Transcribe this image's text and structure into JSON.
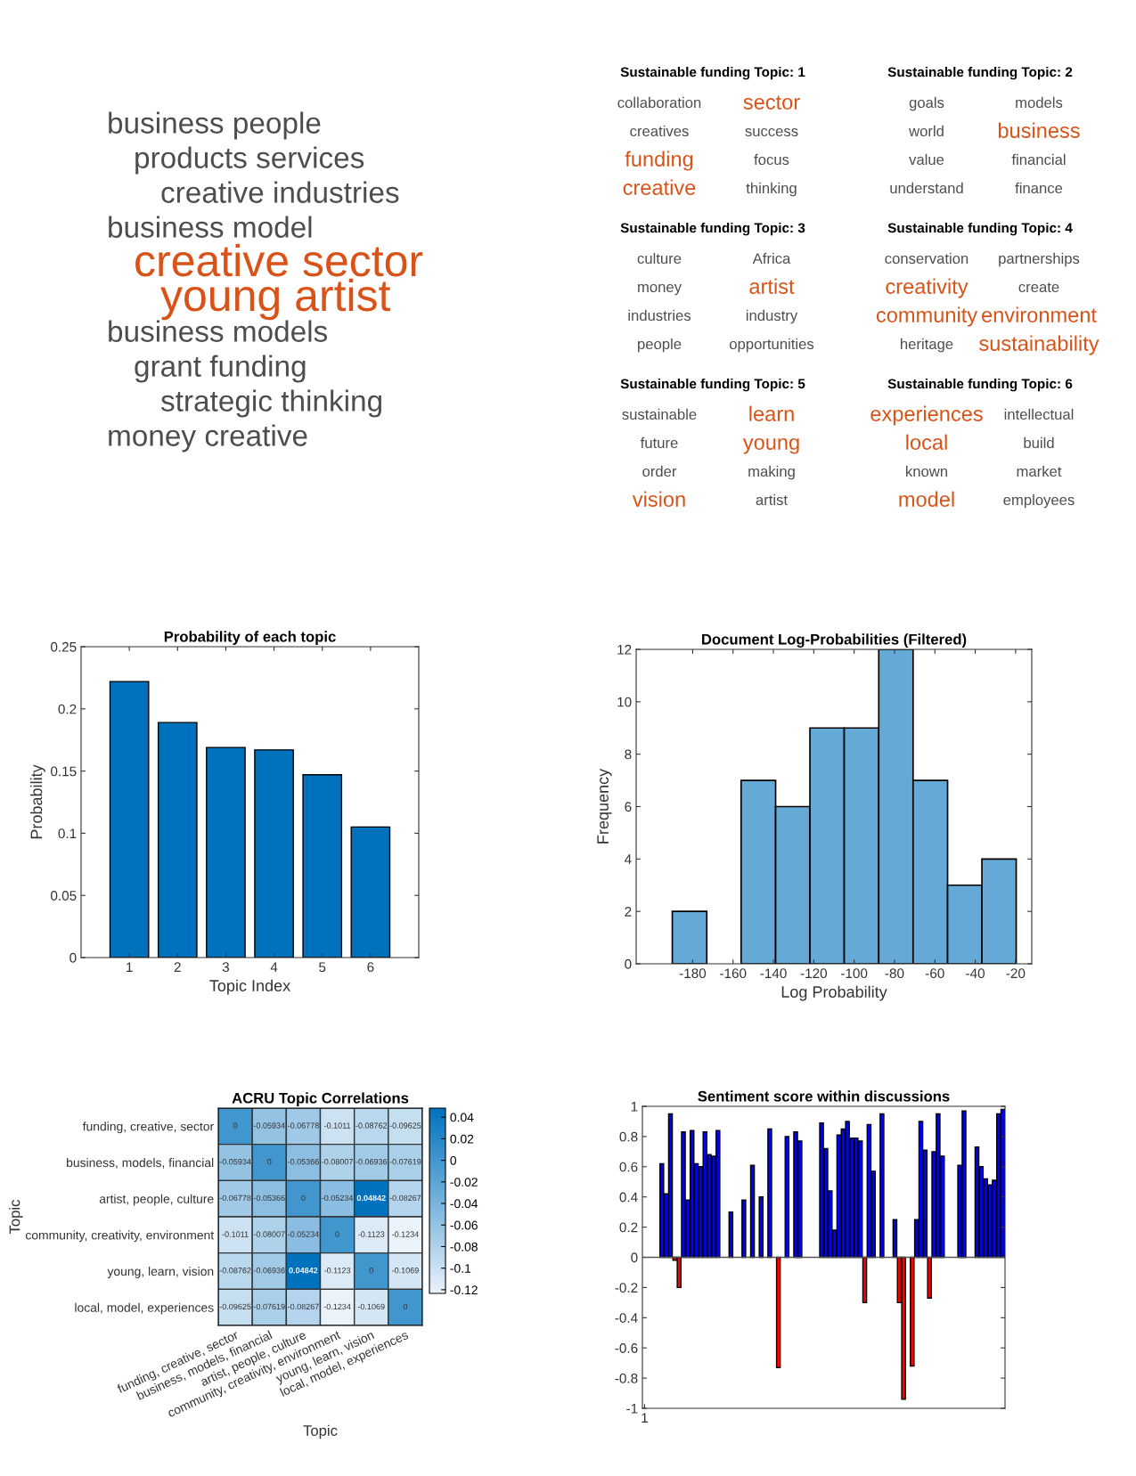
{
  "chart_data": [
    {
      "type": "other",
      "categories": [
        "business people",
        "products services",
        "creative industries",
        "business model",
        "creative sector",
        "young artist",
        "business models",
        "grant funding",
        "strategic thinking",
        "money creative"
      ],
      "colors": [
        "#4d4d4d",
        "#4d4d4d",
        "#4d4d4d",
        "#4d4d4d",
        "#d95319",
        "#d95319",
        "#4d4d4d",
        "#4d4d4d",
        "#4d4d4d",
        "#4d4d4d"
      ]
    },
    {
      "type": "other",
      "title": "Sustainable funding Topic: 1",
      "categories": [
        "collaboration",
        "sector",
        "creatives",
        "success",
        "funding",
        "focus",
        "creative",
        "thinking"
      ],
      "colors": [
        "#4d4d4d",
        "#d95319",
        "#4d4d4d",
        "#4d4d4d",
        "#d95319",
        "#4d4d4d",
        "#d95319",
        "#4d4d4d"
      ]
    },
    {
      "type": "other",
      "title": "Sustainable funding Topic: 2",
      "categories": [
        "goals",
        "models",
        "world",
        "business",
        "value",
        "financial",
        "understand",
        "finance"
      ],
      "colors": [
        "#4d4d4d",
        "#4d4d4d",
        "#4d4d4d",
        "#d95319",
        "#4d4d4d",
        "#4d4d4d",
        "#4d4d4d",
        "#4d4d4d"
      ]
    },
    {
      "type": "other",
      "title": "Sustainable funding Topic: 3",
      "categories": [
        "culture",
        "Africa",
        "money",
        "artist",
        "industries",
        "industry",
        "people",
        "opportunities"
      ],
      "colors": [
        "#4d4d4d",
        "#4d4d4d",
        "#4d4d4d",
        "#d95319",
        "#4d4d4d",
        "#4d4d4d",
        "#4d4d4d",
        "#4d4d4d"
      ]
    },
    {
      "type": "other",
      "title": "Sustainable funding Topic: 4",
      "categories": [
        "conservation",
        "partnerships",
        "creativity",
        "create",
        "community",
        "environment",
        "heritage",
        "sustainability"
      ],
      "colors": [
        "#4d4d4d",
        "#4d4d4d",
        "#d95319",
        "#4d4d4d",
        "#d95319",
        "#d95319",
        "#4d4d4d",
        "#d95319"
      ]
    },
    {
      "type": "other",
      "title": "Sustainable funding Topic: 5",
      "categories": [
        "sustainable",
        "learn",
        "future",
        "young",
        "order",
        "making",
        "vision",
        "artist"
      ],
      "colors": [
        "#4d4d4d",
        "#d95319",
        "#4d4d4d",
        "#d95319",
        "#4d4d4d",
        "#4d4d4d",
        "#d95319",
        "#4d4d4d"
      ]
    },
    {
      "type": "other",
      "title": "Sustainable funding Topic: 6",
      "categories": [
        "experiences",
        "intellectual",
        "local",
        "build",
        "known",
        "market",
        "model",
        "employees"
      ],
      "colors": [
        "#d95319",
        "#4d4d4d",
        "#d95319",
        "#4d4d4d",
        "#4d4d4d",
        "#4d4d4d",
        "#d95319",
        "#4d4d4d"
      ]
    },
    {
      "type": "bar",
      "title": "Probability of each topic",
      "xlabel": "Topic Index",
      "ylabel": "Probability",
      "x": [
        1,
        2,
        3,
        4,
        5,
        6
      ],
      "values": [
        0.222,
        0.189,
        0.169,
        0.167,
        0.147,
        0.105
      ],
      "color": "#0072bd",
      "xlim": [
        0,
        7
      ],
      "xticks": [
        1,
        2,
        3,
        4,
        5,
        6
      ],
      "ylim": [
        0,
        0.25
      ],
      "yticks": [
        0,
        0.05,
        0.1,
        0.15,
        0.2,
        0.25
      ],
      "grid": false
    },
    {
      "type": "histogram",
      "title": "Document Log-Probabilities (Filtered)",
      "xlabel": "Log Probability",
      "ylabel": "Frequency",
      "bins": [
        -190.1,
        -173.0,
        -156.0,
        -138.9,
        -121.9,
        -104.9,
        -87.8,
        -70.8,
        -53.7,
        -36.7,
        -19.7
      ],
      "values": [
        2,
        0,
        7,
        6,
        9,
        9,
        12,
        7,
        3,
        4
      ],
      "color": "#65a9d7",
      "xlim": [
        -208,
        -12
      ],
      "xticks": [
        -180,
        -160,
        -140,
        -120,
        -100,
        -80,
        -60,
        -40,
        -20
      ],
      "ylim": [
        0,
        12
      ],
      "yticks": [
        0,
        2,
        4,
        6,
        8,
        10,
        12
      ],
      "grid": false
    },
    {
      "type": "heatmap",
      "title": "ACRU Topic Correlations",
      "xlabel": "Topic",
      "ylabel": "Topic",
      "categories": [
        "funding, creative, sector",
        "business, models, financial",
        "artist, people, culture",
        "community, creativity, environment",
        "young, learn, vision",
        "local, model, experiences"
      ],
      "y_categories": [
        "funding, creative, sector",
        "business, models, financial",
        "artist, people, culture",
        "community, creativity, environment",
        "young, learn, vision",
        "local, model, experiences"
      ],
      "cells": [
        [
          0,
          -0.05934,
          -0.06778,
          -0.1011,
          -0.08762,
          -0.09625
        ],
        [
          -0.05934,
          0,
          -0.05366,
          -0.08007,
          -0.06936,
          -0.07619
        ],
        [
          -0.06778,
          -0.05366,
          0,
          -0.05234,
          0.04842,
          -0.08267
        ],
        [
          -0.1011,
          -0.08007,
          -0.05234,
          0,
          -0.1123,
          -0.1234
        ],
        [
          -0.08762,
          -0.06936,
          0.04842,
          -0.1123,
          0,
          -0.1069
        ],
        [
          -0.09625,
          -0.07619,
          -0.08267,
          -0.1234,
          -0.1069,
          0
        ]
      ],
      "data_labels": true,
      "colors": [
        "#eaf2fa",
        "#0072bd"
      ],
      "clim": [
        -0.1234,
        0.04842
      ],
      "cticks": [
        0.04,
        0.02,
        0,
        -0.02,
        -0.04,
        -0.06,
        -0.08,
        -0.1,
        -0.12
      ]
    },
    {
      "type": "bar",
      "title": "Sentiment score within discussions",
      "categories": [
        "1",
        null,
        null,
        null,
        null,
        null,
        null,
        null,
        null,
        null,
        null,
        null,
        null,
        null,
        null,
        null,
        null,
        null,
        null,
        null,
        null,
        null,
        null,
        null,
        null,
        null,
        null,
        null,
        null,
        null,
        null,
        null,
        null,
        null,
        null,
        null,
        null,
        null,
        null,
        null,
        null,
        null,
        null,
        null,
        null,
        null,
        null,
        null,
        null,
        null,
        null,
        null,
        null,
        null,
        null,
        null,
        null,
        null,
        null,
        null,
        null,
        null,
        null,
        null,
        null,
        null,
        null,
        null,
        null,
        null,
        null,
        null,
        null,
        null,
        null,
        null,
        null,
        null,
        null,
        null,
        null,
        null,
        null,
        null
      ],
      "values": [
        null,
        null,
        null,
        null,
        0.62,
        0.42,
        0.95,
        -0.02,
        -0.2,
        0.83,
        0.38,
        0.84,
        0.62,
        0.6,
        0.83,
        0.68,
        0.67,
        0.84,
        null,
        null,
        0.3,
        null,
        null,
        0.38,
        null,
        0.61,
        null,
        0.4,
        null,
        0.85,
        null,
        -0.73,
        null,
        0.8,
        null,
        0.83,
        0.77,
        null,
        null,
        null,
        null,
        0.89,
        0.72,
        0.44,
        0.18,
        0.81,
        0.85,
        0.9,
        0.79,
        0.79,
        0.77,
        -0.3,
        0.88,
        0.57,
        null,
        0.95,
        null,
        null,
        0.25,
        -0.3,
        -0.94,
        null,
        -0.72,
        0.25,
        0.9,
        0.71,
        -0.27,
        0.7,
        0.95,
        0.67,
        null,
        null,
        null,
        0.61,
        0.97,
        null,
        null,
        0.73,
        0.6,
        0.52,
        0.48,
        0.51,
        0.95,
        0.98
      ],
      "colors": [
        "#0000ff",
        "#0000ff",
        "#0000ff",
        "#0000ff",
        "#0000ff",
        "#0000ff",
        "#0000ff",
        "#ff0000",
        "#ff0000",
        "#0000ff",
        "#0000ff",
        "#0000ff",
        "#0000ff",
        "#0000ff",
        "#0000ff",
        "#0000ff",
        "#0000ff",
        "#0000ff",
        "#0000ff",
        "#0000ff",
        "#0000ff",
        "#0000ff",
        "#0000ff",
        "#0000ff",
        "#0000ff",
        "#0000ff",
        "#0000ff",
        "#0000ff",
        "#0000ff",
        "#0000ff",
        "#0000ff",
        "#ff0000",
        "#0000ff",
        "#0000ff",
        "#0000ff",
        "#0000ff",
        "#0000ff",
        "#0000ff",
        "#0000ff",
        "#0000ff",
        "#0000ff",
        "#0000ff",
        "#0000ff",
        "#0000ff",
        "#0000ff",
        "#0000ff",
        "#0000ff",
        "#0000ff",
        "#0000ff",
        "#0000ff",
        "#0000ff",
        "#ff0000",
        "#0000ff",
        "#0000ff",
        "#0000ff",
        "#0000ff",
        "#0000ff",
        "#0000ff",
        "#0000ff",
        "#ff0000",
        "#ff0000",
        "#0000ff",
        "#ff0000",
        "#0000ff",
        "#0000ff",
        "#0000ff",
        "#ff0000",
        "#0000ff",
        "#0000ff",
        "#0000ff",
        "#0000ff",
        "#0000ff",
        "#0000ff",
        "#0000ff",
        "#0000ff",
        "#0000ff",
        "#0000ff",
        "#0000ff",
        "#0000ff",
        "#0000ff",
        "#0000ff",
        "#0000ff",
        "#0000ff",
        "#0000ff"
      ],
      "ylim": [
        -1,
        1
      ],
      "yticks": [
        -1,
        -0.8,
        -0.6,
        -0.4,
        -0.2,
        0,
        0.2,
        0.4,
        0.6,
        0.8,
        1
      ],
      "ref_lines": [
        {
          "axis": "y",
          "value": 0,
          "color": "#555555"
        }
      ],
      "grid": false
    }
  ]
}
